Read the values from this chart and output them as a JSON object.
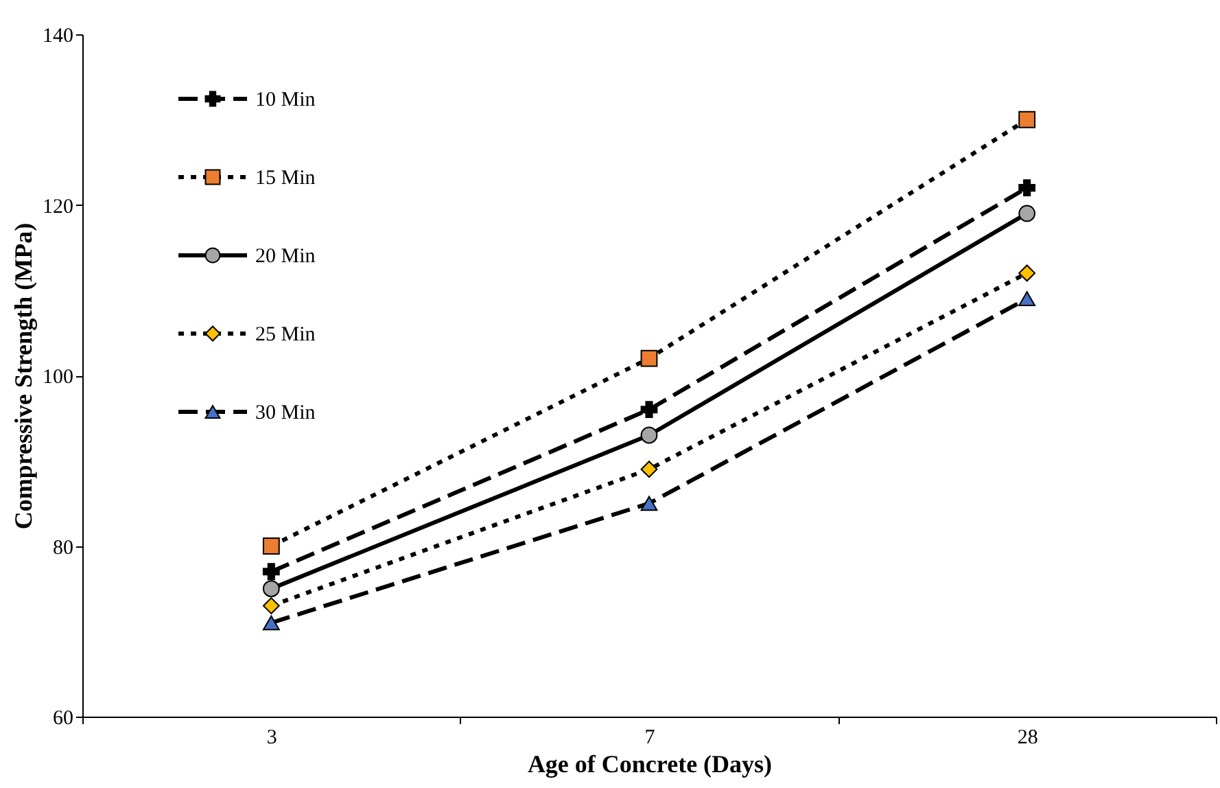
{
  "chart_data": {
    "type": "line",
    "xlabel": "Age of Concrete (Days)",
    "ylabel": "Compressive Strength (MPa)",
    "categories": [
      "3",
      "7",
      "28"
    ],
    "ylim": [
      60,
      140
    ],
    "yticks": [
      60,
      80,
      100,
      120,
      140
    ],
    "grid": false,
    "legend": "top left",
    "series": [
      {
        "name": "10 Min",
        "color": "#000000",
        "marker": "cross",
        "line_style": "dashed",
        "values": [
          77,
          96,
          122
        ]
      },
      {
        "name": "15 Min",
        "color": "#ed7d31",
        "marker": "square",
        "line_style": "dotted",
        "values": [
          80,
          102,
          130
        ]
      },
      {
        "name": "20 Min",
        "color": "#a6a6a6",
        "marker": "circle",
        "line_style": "solid",
        "values": [
          75,
          93,
          119
        ]
      },
      {
        "name": "25 Min",
        "color": "#ffc000",
        "marker": "diamond",
        "line_style": "dotted",
        "values": [
          73,
          89,
          112
        ]
      },
      {
        "name": "30 Min",
        "color": "#4472c4",
        "marker": "triangle",
        "line_style": "dashed",
        "values": [
          71,
          85,
          109
        ]
      }
    ]
  }
}
